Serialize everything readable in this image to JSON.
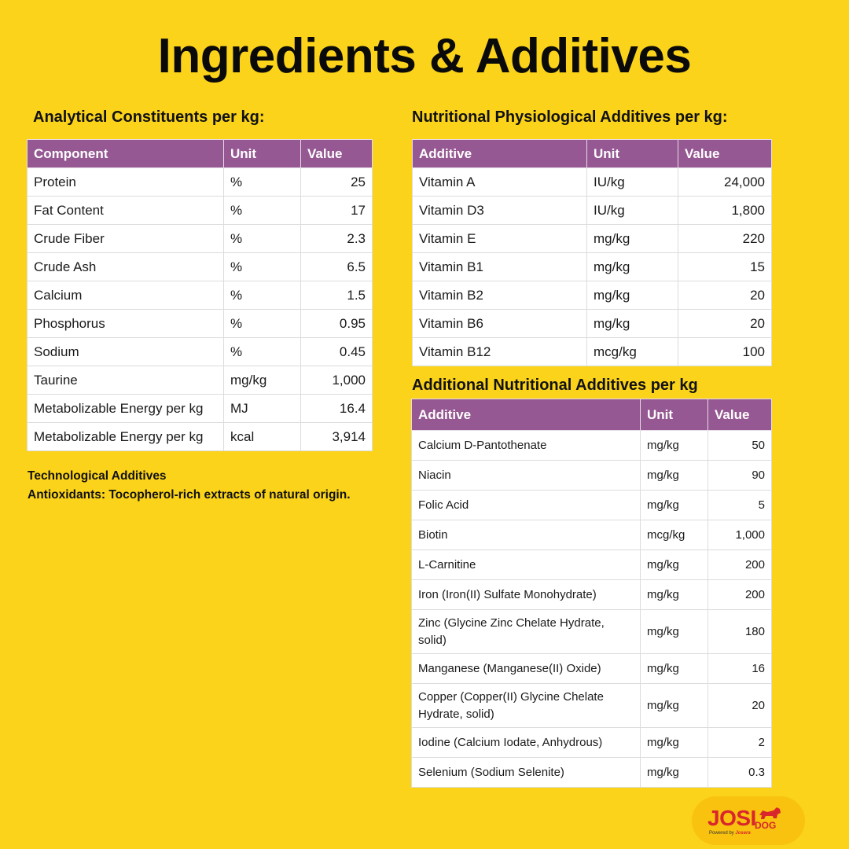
{
  "title": "Ingredients & Additives",
  "analytical": {
    "heading": "Analytical Constituents per kg:",
    "headers": [
      "Component",
      "Unit",
      "Value"
    ],
    "rows": [
      [
        "Protein",
        "%",
        "25"
      ],
      [
        "Fat Content",
        "%",
        "17"
      ],
      [
        "Crude Fiber",
        "%",
        "2.3"
      ],
      [
        "Crude Ash",
        "%",
        "6.5"
      ],
      [
        "Calcium",
        "%",
        "1.5"
      ],
      [
        "Phosphorus",
        "%",
        "0.95"
      ],
      [
        "Sodium",
        "%",
        "0.45"
      ],
      [
        "Taurine",
        "mg/kg",
        "1,000"
      ],
      [
        "Metabolizable Energy per kg",
        "MJ",
        "16.4"
      ],
      [
        "Metabolizable Energy per kg",
        "kcal",
        "3,914"
      ]
    ]
  },
  "technological": {
    "heading": "Technological Additives",
    "text": "Antioxidants: Tocopherol-rich extracts of natural origin."
  },
  "physiological": {
    "heading": "Nutritional Physiological Additives per kg:",
    "headers": [
      "Additive",
      "Unit",
      "Value"
    ],
    "rows": [
      [
        "Vitamin A",
        "IU/kg",
        "24,000"
      ],
      [
        "Vitamin D3",
        "IU/kg",
        "1,800"
      ],
      [
        "Vitamin E",
        "mg/kg",
        "220"
      ],
      [
        "Vitamin B1",
        "mg/kg",
        "15"
      ],
      [
        "Vitamin B2",
        "mg/kg",
        "20"
      ],
      [
        "Vitamin B6",
        "mg/kg",
        "20"
      ],
      [
        "Vitamin B12",
        "mcg/kg",
        "100"
      ]
    ]
  },
  "additional": {
    "heading": "Additional Nutritional Additives per kg",
    "headers": [
      "Additive",
      "Unit",
      "Value"
    ],
    "rows": [
      [
        "Calcium D-Pantothenate",
        "mg/kg",
        "50"
      ],
      [
        "Niacin",
        "mg/kg",
        "90"
      ],
      [
        "Folic Acid",
        "mg/kg",
        "5"
      ],
      [
        "Biotin",
        "mcg/kg",
        "1,000"
      ],
      [
        "L-Carnitine",
        "mg/kg",
        "200"
      ],
      [
        "Iron (Iron(II) Sulfate Monohydrate)",
        "mg/kg",
        "200"
      ],
      [
        "Zinc (Glycine Zinc Chelate Hydrate, solid)",
        "mg/kg",
        "180"
      ],
      [
        "Manganese (Manganese(II) Oxide)",
        "mg/kg",
        "16"
      ],
      [
        "Copper (Copper(II) Glycine Chelate Hydrate, solid)",
        "mg/kg",
        "20"
      ],
      [
        "Iodine (Calcium Iodate, Anhydrous)",
        "mg/kg",
        "2"
      ],
      [
        "Selenium (Sodium Selenite)",
        "mg/kg",
        "0.3"
      ]
    ]
  },
  "brand": {
    "name": "JOSI",
    "sub_word": "DOG",
    "powered_prefix": "Powered by",
    "powered_brand": "Josera"
  },
  "colors": {
    "background": "#FBD31A",
    "table_header": "#955892",
    "brand_red": "#D8262C"
  }
}
